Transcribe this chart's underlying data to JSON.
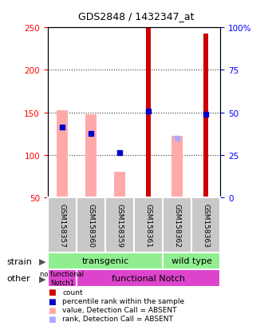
{
  "title": "GDS2848 / 1432347_at",
  "samples": [
    "GSM158357",
    "GSM158360",
    "GSM158359",
    "GSM158361",
    "GSM158362",
    "GSM158363"
  ],
  "red_bar_values": [
    0,
    0,
    0,
    238,
    0,
    193
  ],
  "red_bar_bottom": [
    50,
    50,
    50,
    50,
    50,
    50
  ],
  "pink_bar_values": [
    103,
    98,
    30,
    0,
    73,
    0
  ],
  "pink_bar_bottom": [
    50,
    50,
    50,
    50,
    50,
    50
  ],
  "blue_square_values": [
    133,
    125,
    103,
    152,
    0,
    148
  ],
  "light_blue_square_values": [
    0,
    0,
    0,
    0,
    120,
    0
  ],
  "ylim_left": [
    50,
    250
  ],
  "ylim_right": [
    0,
    100
  ],
  "yticks_left": [
    50,
    100,
    150,
    200,
    250
  ],
  "yticks_right": [
    0,
    25,
    50,
    75,
    100
  ],
  "ytick_right_labels": [
    "0",
    "25",
    "50",
    "75",
    "100%"
  ],
  "color_red": "#cc0000",
  "color_pink": "#ffaaaa",
  "color_blue": "#0000cc",
  "color_light_blue": "#aaaaff",
  "color_green": "#90ee90",
  "color_magenta": "#dd44cc",
  "color_gray": "#c8c8c8",
  "legend_items": [
    {
      "color": "#cc0000",
      "label": "count"
    },
    {
      "color": "#0000cc",
      "label": "percentile rank within the sample"
    },
    {
      "color": "#ffaaaa",
      "label": "value, Detection Call = ABSENT"
    },
    {
      "color": "#aaaaff",
      "label": "rank, Detection Call = ABSENT"
    }
  ]
}
